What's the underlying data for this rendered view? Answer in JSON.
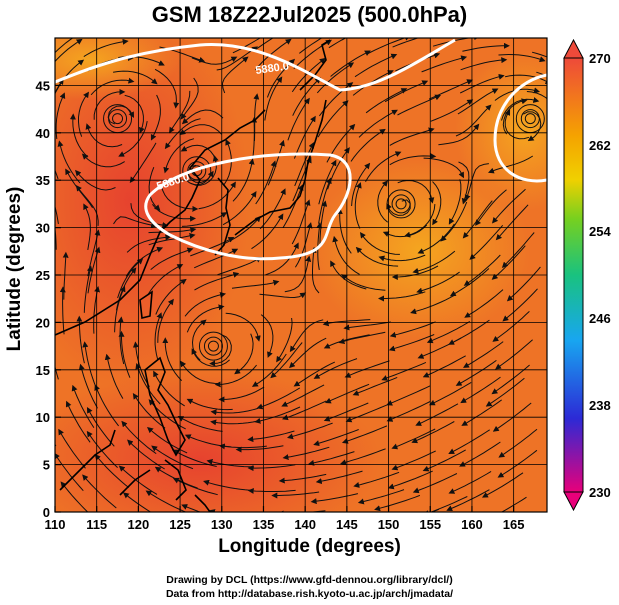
{
  "title": "GSM 18Z22Jul2025 (500.0hPa)",
  "xlabel": "Longitude (degrees)",
  "ylabel": "Latitude  (degrees)",
  "credit_drawing": "Drawing by DCL (https://www.gfd-dennou.org/library/dcl/)",
  "credit_data": "Data from http://database.rish.kyoto-u.ac.jp/arch/jmadata/",
  "map": {
    "lon_range": [
      110,
      169
    ],
    "lat_range": [
      0,
      50
    ],
    "x_ticks": [
      "110",
      "115",
      "120",
      "125",
      "130",
      "135",
      "140",
      "145",
      "150",
      "155",
      "160",
      "165"
    ],
    "y_ticks": [
      "0",
      "5",
      "10",
      "15",
      "20",
      "25",
      "30",
      "35",
      "40",
      "45"
    ],
    "grid": true,
    "contours": [
      {
        "label": "5880.0",
        "color": "#ffffff"
      },
      {
        "label": "5880.0",
        "color": "#ffffff"
      }
    ],
    "fill_field": "temperature (K)",
    "overlay": "wind streamlines",
    "colors": {
      "warm": "#e6402f",
      "mid": "#ee7326",
      "cool": "#f29a22"
    }
  },
  "colorbar": {
    "ticks": [
      "270",
      "262",
      "254",
      "246",
      "238",
      "230"
    ],
    "range": [
      230,
      270
    ],
    "colors": [
      "#e8007a",
      "#2c2ad6",
      "#18a6f0",
      "#19c27f",
      "#77d01f",
      "#f0d000",
      "#f5a300",
      "#ee4a3a"
    ]
  }
}
